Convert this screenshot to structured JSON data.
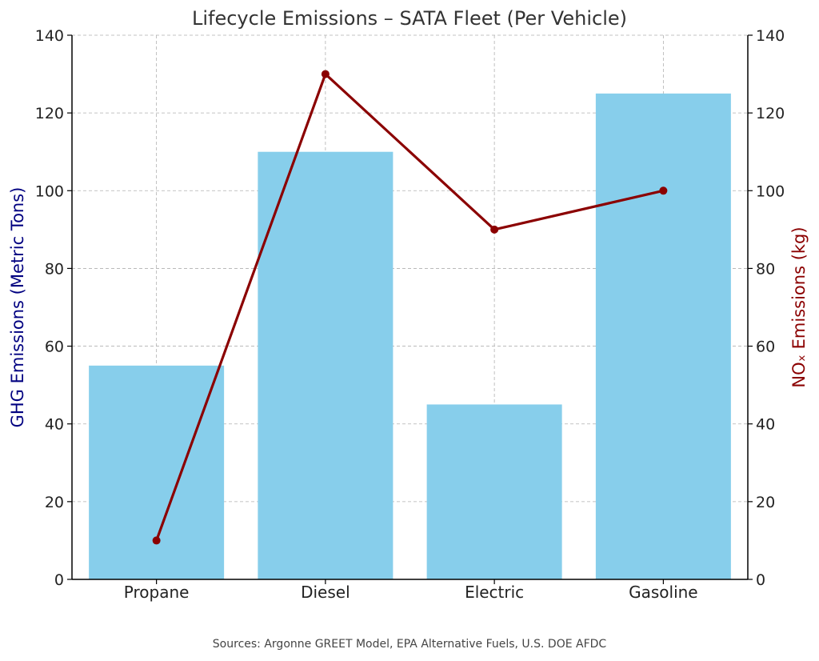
{
  "chart_data": {
    "type": "bar",
    "title": "Lifecycle Emissions – SATA Fleet (Per Vehicle)",
    "categories": [
      "Propane",
      "Diesel",
      "Electric",
      "Gasoline"
    ],
    "series": [
      {
        "name": "GHG Emissions (Metric Tons)",
        "kind": "bar",
        "axis": "left",
        "values": [
          55,
          110,
          45,
          125
        ]
      },
      {
        "name": "NOₓ Emissions (kg)",
        "kind": "line",
        "axis": "right",
        "values": [
          10,
          130,
          90,
          100
        ]
      }
    ],
    "ylabel": "GHG Emissions (Metric Tons)",
    "ylabel_right": "NOₓ Emissions (kg)",
    "ylim": [
      0,
      140
    ],
    "ylim_right": [
      0,
      140
    ],
    "yticks": [
      0,
      20,
      40,
      60,
      80,
      100,
      120,
      140
    ],
    "yticks_right": [
      0,
      20,
      40,
      60,
      80,
      100,
      120,
      140
    ],
    "grid": true,
    "colors": {
      "bar": "#87ceeb",
      "line": "#8b0000",
      "ylabel_left": "#000080",
      "ylabel_right": "#8b0000"
    },
    "footnote": "Sources: Argonne GREET Model, EPA Alternative Fuels, U.S. DOE AFDC"
  }
}
